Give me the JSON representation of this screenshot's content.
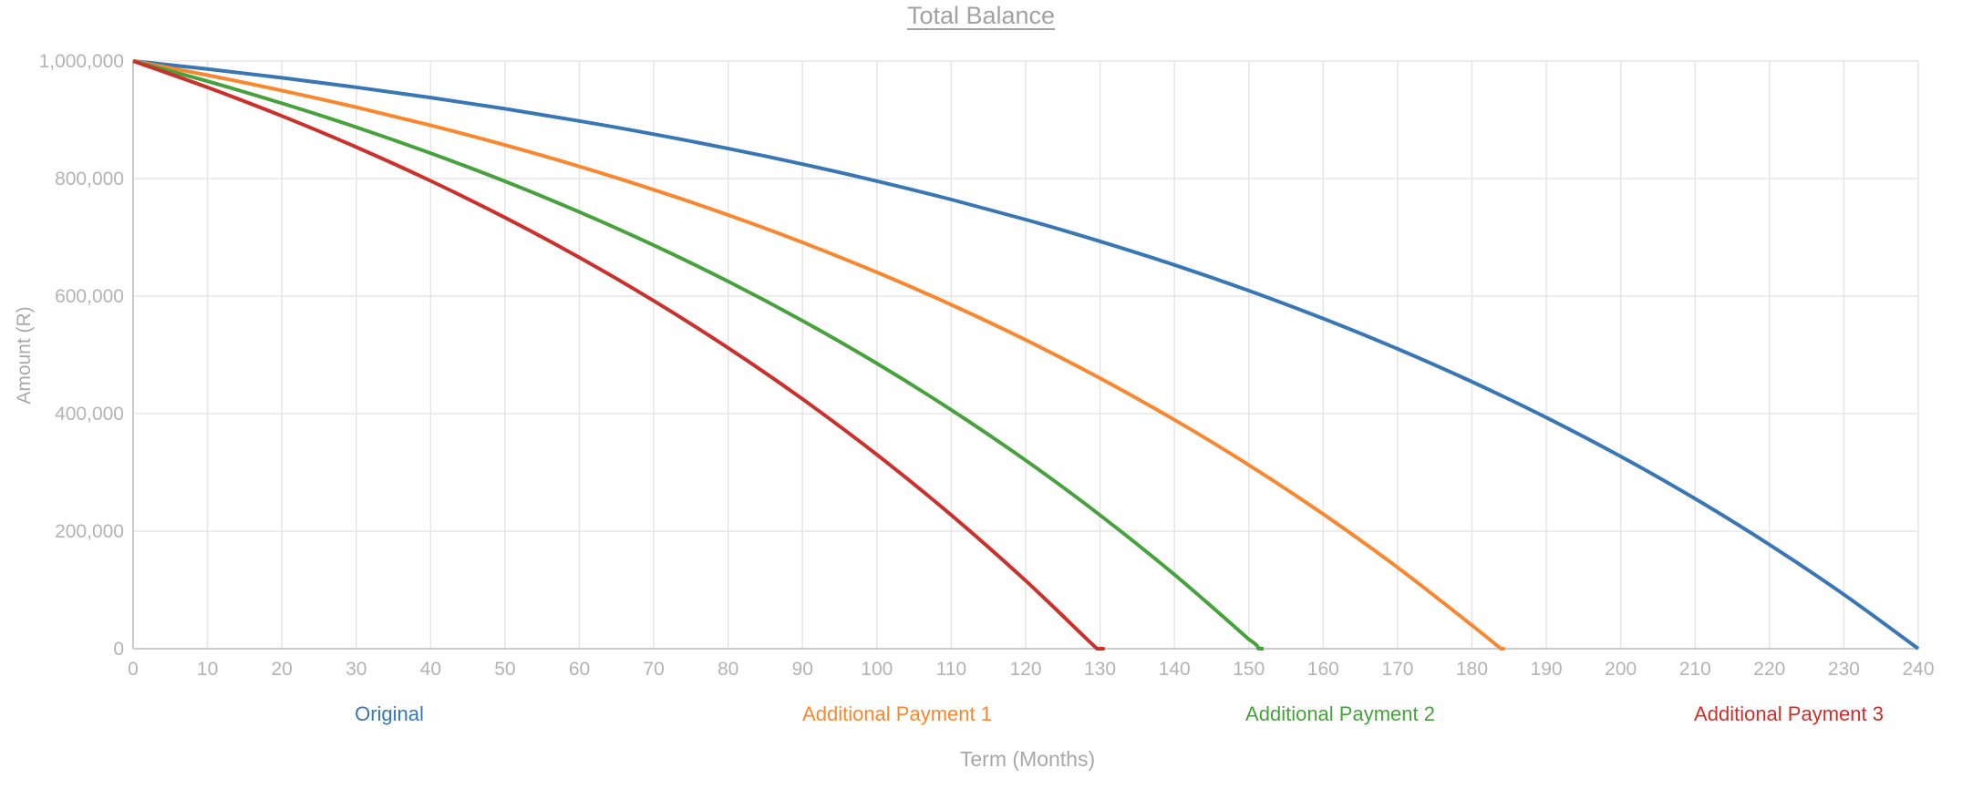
{
  "chart_data": {
    "type": "line",
    "title": "Total Balance",
    "xlabel": "Term (Months)",
    "ylabel": "Amount (R)",
    "xlim": [
      0,
      240
    ],
    "ylim": [
      0,
      1000000
    ],
    "grid": true,
    "legend_position": "bottom",
    "x_ticks": [
      0,
      10,
      20,
      30,
      40,
      50,
      60,
      70,
      80,
      90,
      100,
      110,
      120,
      130,
      140,
      150,
      160,
      170,
      180,
      190,
      200,
      210,
      220,
      230,
      240
    ],
    "y_ticks": [
      {
        "value": 0,
        "label": "0"
      },
      {
        "value": 200000,
        "label": "200,000"
      },
      {
        "value": 400000,
        "label": "400,000"
      },
      {
        "value": 600000,
        "label": "600,000"
      },
      {
        "value": 800000,
        "label": "800,000"
      },
      {
        "value": 1000000,
        "label": "1,000,000"
      }
    ],
    "series": [
      {
        "name": "Original",
        "color": "#3876b4",
        "payoff_month": 240,
        "points": [
          [
            0,
            1000000
          ],
          [
            10,
            986326
          ],
          [
            20,
            971468
          ],
          [
            30,
            955325
          ],
          [
            40,
            937787
          ],
          [
            50,
            918731
          ],
          [
            60,
            898025
          ],
          [
            70,
            875526
          ],
          [
            80,
            851083
          ],
          [
            90,
            824525
          ],
          [
            100,
            795667
          ],
          [
            110,
            764312
          ],
          [
            120,
            730242
          ],
          [
            130,
            693226
          ],
          [
            140,
            653010
          ],
          [
            150,
            609312
          ],
          [
            160,
            561833
          ],
          [
            170,
            510251
          ],
          [
            180,
            454201
          ],
          [
            190,
            393304
          ],
          [
            200,
            327134
          ],
          [
            210,
            255238
          ],
          [
            220,
            177124
          ],
          [
            230,
            92251
          ],
          [
            240,
            0
          ]
        ]
      },
      {
        "name": "Additional Payment 1",
        "color": "#f9872f",
        "payoff_month": 184,
        "points": [
          [
            0,
            1000000
          ],
          [
            10,
            975942
          ],
          [
            20,
            949802
          ],
          [
            30,
            921402
          ],
          [
            40,
            890546
          ],
          [
            50,
            857019
          ],
          [
            60,
            820589
          ],
          [
            70,
            781006
          ],
          [
            80,
            738000
          ],
          [
            90,
            691273
          ],
          [
            100,
            640503
          ],
          [
            110,
            585338
          ],
          [
            120,
            525397
          ],
          [
            130,
            460266
          ],
          [
            140,
            389499
          ],
          [
            150,
            312614
          ],
          [
            160,
            229089
          ],
          [
            170,
            138363
          ],
          [
            180,
            39771
          ],
          [
            183.9,
            0
          ],
          [
            184,
            0
          ]
        ]
      },
      {
        "name": "Additional Payment 2",
        "color": "#47a13c",
        "payoff_month": 151,
        "points": [
          [
            0,
            1000000
          ],
          [
            10,
            965561
          ],
          [
            20,
            928132
          ],
          [
            30,
            887470
          ],
          [
            40,
            843302
          ],
          [
            50,
            795301
          ],
          [
            60,
            743159
          ],
          [
            70,
            686493
          ],
          [
            80,
            624927
          ],
          [
            90,
            558038
          ],
          [
            100,
            485355
          ],
          [
            110,
            406380
          ],
          [
            120,
            320574
          ],
          [
            130,
            227336
          ],
          [
            140,
            126043
          ],
          [
            150,
            15978
          ],
          [
            151.3,
            0
          ],
          [
            152,
            0
          ]
        ]
      },
      {
        "name": "Additional Payment 3",
        "color": "#ca302c",
        "payoff_month": 130,
        "points": [
          [
            0,
            1000000
          ],
          [
            10,
            955174
          ],
          [
            20,
            906470
          ],
          [
            30,
            853554
          ],
          [
            40,
            796068
          ],
          [
            50,
            733596
          ],
          [
            60,
            665725
          ],
          [
            70,
            591979
          ],
          [
            80,
            511852
          ],
          [
            90,
            424791
          ],
          [
            100,
            330200
          ],
          [
            110,
            227425
          ],
          [
            120,
            115750
          ],
          [
            129.6,
            0
          ],
          [
            130,
            0
          ]
        ]
      }
    ]
  }
}
